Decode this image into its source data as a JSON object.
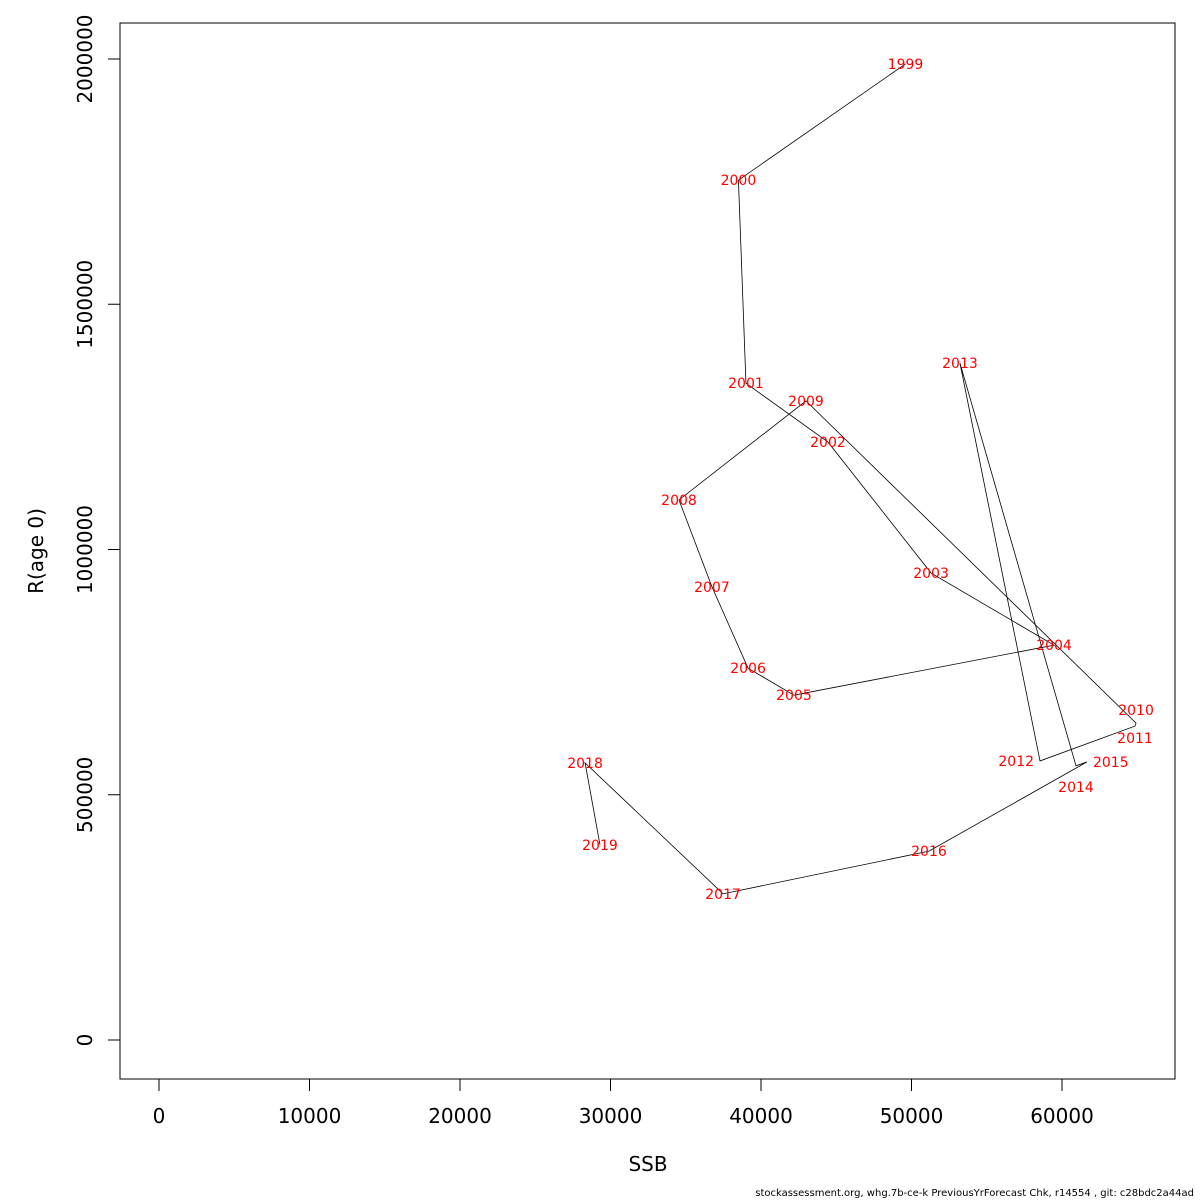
{
  "chart_data": {
    "type": "line",
    "title": "",
    "xlabel": "SSB",
    "ylabel": "R(age 0)",
    "xlim": [
      -2600,
      67500
    ],
    "ylim": [
      -80000,
      2070000
    ],
    "xticks": [
      0,
      10000,
      20000,
      30000,
      40000,
      50000,
      60000
    ],
    "yticks": [
      0,
      500000,
      1000000,
      1500000,
      2000000
    ],
    "grid": false,
    "line_color": "#000000",
    "label_color": "#ff0000",
    "points": [
      {
        "year": "1999",
        "x": 49600,
        "y": 1990000
      },
      {
        "year": "2000",
        "x": 38500,
        "y": 1753000
      },
      {
        "year": "2001",
        "x": 39000,
        "y": 1339000
      },
      {
        "year": "2002",
        "x": 44450,
        "y": 1219000
      },
      {
        "year": "2003",
        "x": 51300,
        "y": 952000
      },
      {
        "year": "2004",
        "x": 59470,
        "y": 805000
      },
      {
        "year": "2005",
        "x": 42190,
        "y": 703000
      },
      {
        "year": "2006",
        "x": 39140,
        "y": 758000
      },
      {
        "year": "2007",
        "x": 36740,
        "y": 924000
      },
      {
        "year": "2008",
        "x": 34550,
        "y": 1101000
      },
      {
        "year": "2009",
        "x": 42990,
        "y": 1303000
      },
      {
        "year": "2010",
        "x": 64920,
        "y": 646000
      },
      {
        "year": "2011",
        "x": 64850,
        "y": 640000
      },
      {
        "year": "2012",
        "x": 58540,
        "y": 569000
      },
      {
        "year": "2013",
        "x": 53220,
        "y": 1380000
      },
      {
        "year": "2014",
        "x": 60930,
        "y": 559000
      },
      {
        "year": "2015",
        "x": 61660,
        "y": 567000
      },
      {
        "year": "2016",
        "x": 51160,
        "y": 385000
      },
      {
        "year": "2017",
        "x": 37480,
        "y": 298000
      },
      {
        "year": "2018",
        "x": 28310,
        "y": 565000
      },
      {
        "year": "2019",
        "x": 29300,
        "y": 398000
      }
    ]
  },
  "footer": "stockassessment.org, whg.7b-ce-k  PreviousYrForecast  Chk, r14554 , git: c28bdc2a44ad"
}
